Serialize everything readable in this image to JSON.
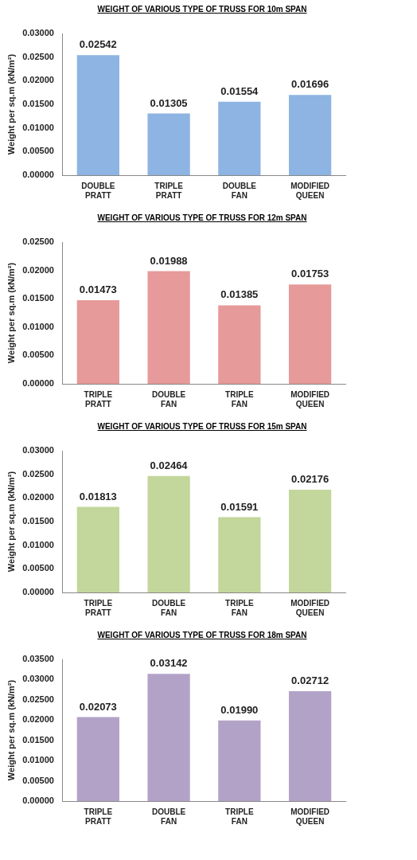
{
  "chart_data": [
    {
      "type": "bar",
      "title": "WEIGHT OF VARIOUS TYPE OF TRUSS FOR 10m SPAN",
      "ylabel": "Weight per sq.m (kN/m²)",
      "categories": [
        "DOUBLE PRATT",
        "TRIPLE PRATT",
        "DOUBLE FAN",
        "MODIFIED QUEEN"
      ],
      "values": [
        0.02542,
        0.01305,
        0.01554,
        0.01696
      ],
      "color": "#8db4e2",
      "ylim": [
        0,
        0.03
      ],
      "yticks": [
        {
          "value": 0,
          "label": "0.00000"
        },
        {
          "value": 0.005,
          "label": "0.00500"
        },
        {
          "value": 0.01,
          "label": "0.01000"
        },
        {
          "value": 0.015,
          "label": "0.01500"
        },
        {
          "value": 0.02,
          "label": "0.02000"
        },
        {
          "value": 0.025,
          "label": "0.02500"
        },
        {
          "value": 0.03,
          "label": "0.03000"
        }
      ],
      "value_labels": [
        "0.02542",
        "0.01305",
        "0.01554",
        "0.01696"
      ]
    },
    {
      "type": "bar",
      "title": "WEIGHT OF VARIOUS TYPE OF TRUSS FOR 12m SPAN",
      "ylabel": "Weight per sq.m (kN/m²)",
      "categories": [
        "TRIPLE PRATT",
        "DOUBLE FAN",
        "TRIPLE FAN",
        "MODIFIED QUEEN"
      ],
      "values": [
        0.01473,
        0.01988,
        0.01385,
        0.01753
      ],
      "color": "#e69a9a",
      "ylim": [
        0,
        0.025
      ],
      "yticks": [
        {
          "value": 0,
          "label": "0.00000"
        },
        {
          "value": 0.005,
          "label": "0.00500"
        },
        {
          "value": 0.01,
          "label": "0.01000"
        },
        {
          "value": 0.015,
          "label": "0.01500"
        },
        {
          "value": 0.02,
          "label": "0.02000"
        },
        {
          "value": 0.025,
          "label": "0.02500"
        }
      ],
      "value_labels": [
        "0.01473",
        "0.01988",
        "0.01385",
        "0.01753"
      ]
    },
    {
      "type": "bar",
      "title": "WEIGHT OF VARIOUS TYPE OF TRUSS FOR 15m SPAN",
      "ylabel": "Weight per sq.m (kN/m²)",
      "categories": [
        "TRIPLE PRATT",
        "DOUBLE FAN",
        "TRIPLE FAN",
        "MODIFIED QUEEN"
      ],
      "values": [
        0.01813,
        0.02464,
        0.01591,
        0.02176
      ],
      "color": "#c3d69b",
      "ylim": [
        0,
        0.03
      ],
      "yticks": [
        {
          "value": 0,
          "label": "0.00000"
        },
        {
          "value": 0.005,
          "label": "0.00500"
        },
        {
          "value": 0.01,
          "label": "0.01000"
        },
        {
          "value": 0.015,
          "label": "0.01500"
        },
        {
          "value": 0.02,
          "label": "0.02000"
        },
        {
          "value": 0.025,
          "label": "0.02500"
        },
        {
          "value": 0.03,
          "label": "0.03000"
        }
      ],
      "value_labels": [
        "0.01813",
        "0.02464",
        "0.01591",
        "0.02176"
      ]
    },
    {
      "type": "bar",
      "title": "WEIGHT OF VARIOUS TYPE OF TRUSS FOR 18m SPAN",
      "ylabel": "Weight per sq.m (kN/m²)",
      "categories": [
        "TRIPLE PRATT",
        "DOUBLE FAN",
        "TRIPLE FAN",
        "MODIFIED QUEEN"
      ],
      "values": [
        0.02073,
        0.03142,
        0.0199,
        0.02712
      ],
      "color": "#b3a2c7",
      "ylim": [
        0,
        0.035
      ],
      "yticks": [
        {
          "value": 0,
          "label": "0.00000"
        },
        {
          "value": 0.005,
          "label": "0.00500"
        },
        {
          "value": 0.01,
          "label": "0.01000"
        },
        {
          "value": 0.015,
          "label": "0.01500"
        },
        {
          "value": 0.02,
          "label": "0.02000"
        },
        {
          "value": 0.025,
          "label": "0.02500"
        },
        {
          "value": 0.03,
          "label": "0.03000"
        },
        {
          "value": 0.035,
          "label": "0.03500"
        }
      ],
      "value_labels": [
        "0.02073",
        "0.03142",
        "0.01990",
        "0.02712"
      ]
    }
  ]
}
